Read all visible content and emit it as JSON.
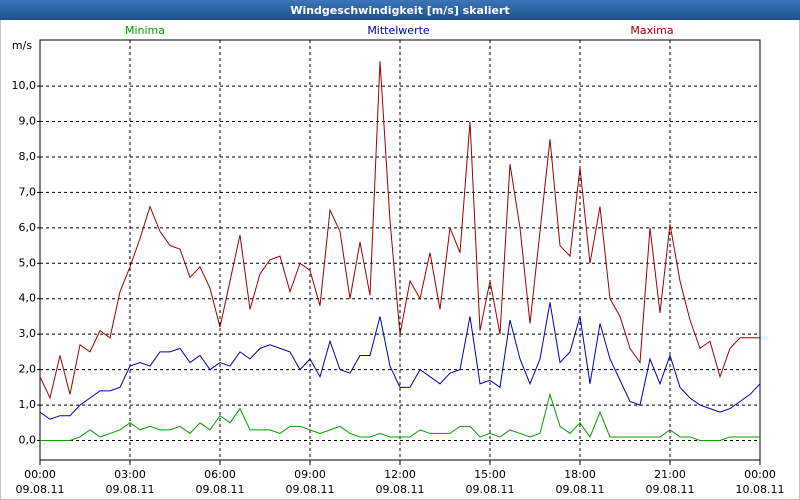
{
  "chart_data": {
    "type": "line",
    "title": "Windgeschwindigkeit [m/s] skaliert",
    "y_label": "m/s",
    "x": [
      0,
      20,
      40,
      60,
      80,
      100,
      120,
      140,
      160,
      180,
      200,
      220,
      240,
      260,
      280,
      300,
      320,
      340,
      360,
      380,
      400,
      420,
      440,
      460,
      480,
      500,
      520,
      540,
      560,
      580,
      600,
      620,
      640,
      660,
      680,
      700,
      720,
      740,
      760,
      780,
      800,
      820,
      840,
      860,
      880,
      900,
      920,
      940,
      960,
      980,
      1000,
      1020,
      1040,
      1060,
      1080,
      1100,
      1120,
      1140,
      1160,
      1180,
      1200,
      1220,
      1240,
      1260,
      1280,
      1300,
      1320,
      1340,
      1360,
      1380,
      1400,
      1420,
      1440
    ],
    "series": [
      {
        "name": "Minima",
        "color": "#00a000",
        "values": [
          0,
          0,
          0,
          0,
          0.1,
          0.3,
          0.1,
          0.2,
          0.3,
          0.5,
          0.3,
          0.4,
          0.3,
          0.3,
          0.4,
          0.2,
          0.5,
          0.3,
          0.7,
          0.5,
          0.9,
          0.3,
          0.3,
          0.3,
          0.2,
          0.4,
          0.4,
          0.3,
          0.2,
          0.3,
          0.4,
          0.2,
          0.1,
          0.1,
          0.2,
          0.1,
          0.1,
          0.1,
          0.3,
          0.2,
          0.2,
          0.2,
          0.4,
          0.4,
          0.1,
          0.2,
          0.1,
          0.3,
          0.2,
          0.1,
          0.2,
          1.3,
          0.4,
          0.2,
          0.5,
          0.1,
          0.8,
          0.1,
          0.1,
          0.1,
          0.1,
          0.1,
          0.1,
          0.3,
          0.1,
          0.1,
          0,
          0,
          0,
          0.1,
          0.1,
          0.1,
          0.1
        ]
      },
      {
        "name": "Mittelwerte",
        "color": "#0000b0",
        "values": [
          0.8,
          0.6,
          0.7,
          0.7,
          1.0,
          1.2,
          1.4,
          1.4,
          1.5,
          2.1,
          2.2,
          2.1,
          2.5,
          2.5,
          2.6,
          2.2,
          2.4,
          2.0,
          2.2,
          2.1,
          2.5,
          2.3,
          2.6,
          2.7,
          2.6,
          2.5,
          2.0,
          2.3,
          1.8,
          2.8,
          2.0,
          1.9,
          2.4,
          2.4,
          3.5,
          2.1,
          1.5,
          1.5,
          2.0,
          1.8,
          1.6,
          1.9,
          2.0,
          3.5,
          1.6,
          1.7,
          1.5,
          3.4,
          2.3,
          1.6,
          2.3,
          3.9,
          2.2,
          2.5,
          3.5,
          1.6,
          3.3,
          2.3,
          1.7,
          1.1,
          1.0,
          2.3,
          1.6,
          2.4,
          1.5,
          1.2,
          1.0,
          0.9,
          0.8,
          0.9,
          1.1,
          1.3,
          1.6
        ]
      },
      {
        "name": "Maxima",
        "color": "#a00000",
        "values": [
          1.8,
          1.2,
          2.4,
          1.3,
          2.7,
          2.5,
          3.1,
          2.9,
          4.2,
          4.9,
          5.7,
          6.6,
          5.9,
          5.5,
          5.4,
          4.6,
          4.9,
          4.3,
          3.2,
          4.5,
          5.8,
          3.7,
          4.7,
          5.1,
          5.2,
          4.2,
          5.0,
          4.8,
          3.8,
          6.5,
          5.9,
          4.0,
          5.6,
          4.1,
          10.7,
          6.2,
          3.0,
          4.5,
          4.0,
          5.3,
          3.7,
          6.0,
          5.3,
          9.0,
          3.1,
          4.5,
          3.0,
          7.8,
          6.0,
          3.3,
          5.9,
          8.5,
          5.5,
          5.2,
          7.7,
          5.0,
          6.6,
          4.0,
          3.5,
          2.6,
          2.2,
          6.0,
          3.6,
          6.1,
          4.5,
          3.4,
          2.6,
          2.8,
          1.8,
          2.6,
          2.9,
          2.9,
          2.9
        ]
      }
    ],
    "xlim": [
      0,
      1440
    ],
    "xticks": [
      {
        "value": 0,
        "label": "00:00 09.08.11"
      },
      {
        "value": 180,
        "label": "03:00 09.08.11"
      },
      {
        "value": 360,
        "label": "06:00 09.08.11"
      },
      {
        "value": 540,
        "label": "09:00 09.08.11"
      },
      {
        "value": 720,
        "label": "12:00 09.08.11"
      },
      {
        "value": 900,
        "label": "15:00 09.08.11"
      },
      {
        "value": 1080,
        "label": "18:00 09.08.11"
      },
      {
        "value": 1260,
        "label": "21:00 09.08.11"
      },
      {
        "value": 1440,
        "label": "00:00 10.08.11"
      }
    ],
    "ylim": [
      -0.55,
      11.3
    ],
    "yticks": [
      {
        "value": 0,
        "label": "0,0"
      },
      {
        "value": 1,
        "label": "1,0"
      },
      {
        "value": 2,
        "label": "2,0"
      },
      {
        "value": 3,
        "label": "3,0"
      },
      {
        "value": 4,
        "label": "4,0"
      },
      {
        "value": 5,
        "label": "5,0"
      },
      {
        "value": 6,
        "label": "6,0"
      },
      {
        "value": 7,
        "label": "7,0"
      },
      {
        "value": 8,
        "label": "8,0"
      },
      {
        "value": 9,
        "label": "9,0"
      },
      {
        "value": 10,
        "label": "10,0"
      }
    ],
    "grid": true
  }
}
